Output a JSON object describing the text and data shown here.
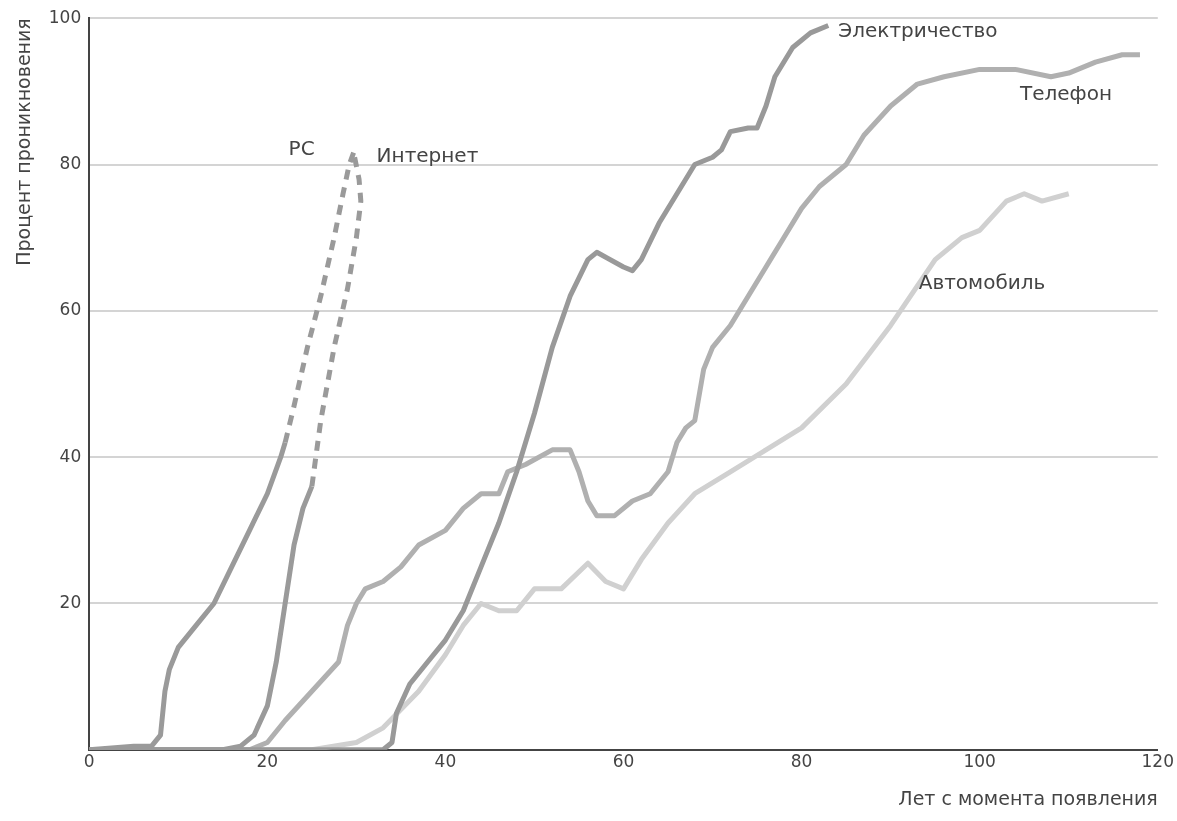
{
  "chart_data": {
    "type": "line",
    "xlabel": "Лет с момента появления",
    "ylabel": "Процент проникновения",
    "xlim": [
      0,
      120
    ],
    "xticks": [
      0,
      20,
      40,
      60,
      80,
      100,
      120
    ],
    "ylim": [
      0,
      100
    ],
    "yticks": [
      20,
      40,
      60,
      80,
      100
    ],
    "grid": "y",
    "legend": false,
    "marker": "none",
    "series": [
      {
        "color": "#9a9a9a",
        "line_style": "solid",
        "x": [
          0,
          5,
          7,
          8,
          8.5,
          9,
          10,
          12,
          14,
          16,
          18,
          20,
          21.5,
          22
        ],
        "values": [
          0,
          0.5,
          0.5,
          2,
          8,
          11,
          14,
          17,
          20,
          25,
          30,
          35,
          40,
          42
        ]
      },
      {
        "name": "PC",
        "color": "#9a9a9a",
        "line_style": "dashed",
        "x": [
          22,
          23,
          24.5,
          26,
          27.5,
          28.5,
          29.2,
          29.8
        ],
        "values": [
          42,
          47,
          55,
          62,
          70,
          76,
          80,
          82
        ]
      },
      {
        "color": "#9a9a9a",
        "line_style": "solid",
        "x": [
          0,
          15,
          17,
          18.5,
          20,
          21,
          22,
          23,
          24,
          25
        ],
        "values": [
          0,
          0,
          0.5,
          2,
          6,
          12,
          20,
          28,
          33,
          36
        ]
      },
      {
        "name": "Интернет",
        "color": "#9a9a9a",
        "line_style": "dashed",
        "x": [
          25,
          26,
          27.5,
          29,
          30,
          30.5,
          30.3,
          29.8
        ],
        "values": [
          36,
          45,
          55,
          63,
          70,
          75,
          78,
          81
        ]
      },
      {
        "name": "Электричество",
        "color": "#999999",
        "line_style": "solid",
        "x": [
          0,
          33,
          34,
          34.5,
          36,
          38,
          40,
          42,
          44,
          46,
          48,
          50,
          52,
          54,
          56,
          57,
          60,
          61,
          62,
          64,
          66,
          68,
          70,
          71,
          72,
          74,
          75,
          76,
          77,
          79,
          81,
          83
        ],
        "values": [
          0,
          0,
          1,
          5,
          9,
          12,
          15,
          19,
          25,
          31,
          38,
          46,
          55,
          62,
          67,
          68,
          66,
          65.5,
          67,
          72,
          76,
          80,
          81,
          82,
          84.5,
          85,
          85,
          88,
          92,
          96,
          98,
          99
        ]
      },
      {
        "name": "Телефон",
        "color": "#b0b0b0",
        "line_style": "solid",
        "x": [
          0,
          18,
          20,
          22,
          25,
          28,
          29,
          30,
          31,
          33,
          35,
          37,
          40,
          42,
          44,
          46,
          47,
          49,
          52,
          54,
          55,
          56,
          57,
          59,
          61,
          63,
          65,
          66,
          67,
          68,
          69,
          70,
          72,
          74,
          76,
          78,
          80,
          82,
          85,
          87,
          90,
          93,
          96,
          100,
          104,
          108,
          110,
          113,
          116,
          118
        ],
        "values": [
          0,
          0,
          1,
          4,
          8,
          12,
          17,
          20,
          22,
          23,
          25,
          28,
          30,
          33,
          35,
          35,
          38,
          39,
          41,
          41,
          38,
          34,
          32,
          32,
          34,
          35,
          38,
          42,
          44,
          45,
          52,
          55,
          58,
          62,
          66,
          70,
          74,
          77,
          80,
          84,
          88,
          91,
          92,
          93,
          93,
          92,
          92.5,
          94,
          95,
          95
        ]
      },
      {
        "name": "Автомобиль",
        "color": "#d0d0d0",
        "line_style": "solid",
        "x": [
          0,
          25,
          30,
          33,
          37,
          40,
          42,
          44,
          46,
          48,
          50,
          53,
          56,
          58,
          60,
          62,
          65,
          68,
          72,
          76,
          80,
          85,
          90,
          95,
          98,
          100,
          103,
          105,
          107,
          110
        ],
        "values": [
          0,
          0,
          1,
          3,
          8,
          13,
          17,
          20,
          19,
          19,
          22,
          22,
          25.5,
          23,
          22,
          26,
          31,
          35,
          38,
          41,
          44,
          50,
          58,
          67,
          70,
          71,
          75,
          76,
          75,
          76
        ]
      }
    ]
  }
}
